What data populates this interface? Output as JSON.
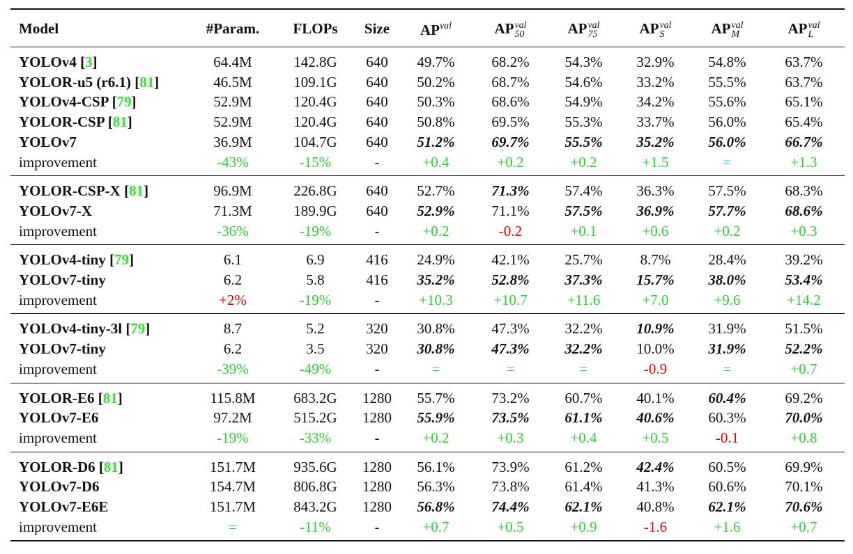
{
  "colors": {
    "improvement_positive": "#29d12e",
    "improvement_negative": "#e00000",
    "improvement_equal": "#1fb2f0",
    "citation": "#2ee52e"
  },
  "headers": {
    "model": "Model",
    "params": "#Param.",
    "flops": "FLOPs",
    "size": "Size",
    "ap": {
      "base": "AP",
      "sup": "val"
    },
    "ap50": {
      "base": "AP",
      "sup": "val",
      "sub": "50"
    },
    "ap75": {
      "base": "AP",
      "sup": "val",
      "sub": "75"
    },
    "aps": {
      "base": "AP",
      "sup": "val",
      "sub": "S"
    },
    "apm": {
      "base": "AP",
      "sup": "val",
      "sub": "M"
    },
    "apl": {
      "base": "AP",
      "sup": "val",
      "sub": "L"
    }
  },
  "groups": [
    {
      "rows": [
        {
          "model": "YOLOv4",
          "cite": "3",
          "params": "64.4M",
          "flops": "142.8G",
          "size": "640",
          "ap": "49.7%",
          "ap50": "68.2%",
          "ap75": "54.3%",
          "aps": "32.9%",
          "apm": "54.8%",
          "apl": "63.7%"
        },
        {
          "model": "YOLOR-u5 (r6.1)",
          "cite": "81",
          "params": "46.5M",
          "flops": "109.1G",
          "size": "640",
          "ap": "50.2%",
          "ap50": "68.7%",
          "ap75": "54.6%",
          "aps": "33.2%",
          "apm": "55.5%",
          "apl": "63.7%"
        },
        {
          "model": "YOLOv4-CSP",
          "cite": "79",
          "params": "52.9M",
          "flops": "120.4G",
          "size": "640",
          "ap": "50.3%",
          "ap50": "68.6%",
          "ap75": "54.9%",
          "aps": "34.2%",
          "apm": "55.6%",
          "apl": "65.1%"
        },
        {
          "model": "YOLOR-CSP",
          "cite": "81",
          "params": "52.9M",
          "flops": "120.4G",
          "size": "640",
          "ap": "50.8%",
          "ap50": "69.5%",
          "ap75": "55.3%",
          "aps": "33.7%",
          "apm": "56.0%",
          "apl": "65.4%"
        },
        {
          "model": "YOLOv7",
          "params": "36.9M",
          "flops": "104.7G",
          "size": "640",
          "ap": "51.2%",
          "ap50": "69.7%",
          "ap75": "55.5%",
          "aps": "35.2%",
          "apm": "56.0%",
          "apl": "66.7%"
        },
        {
          "model": "improvement",
          "params": "-43%",
          "flops": "-15%",
          "size": "-",
          "ap": "+0.4",
          "ap50": "+0.2",
          "ap75": "+0.2",
          "aps": "+1.5",
          "apm": "=",
          "apl": "+1.3"
        }
      ]
    },
    {
      "rows": [
        {
          "model": "YOLOR-CSP-X",
          "cite": "81",
          "params": "96.9M",
          "flops": "226.8G",
          "size": "640",
          "ap": "52.7%",
          "ap50": "71.3%",
          "ap75": "57.4%",
          "aps": "36.3%",
          "apm": "57.5%",
          "apl": "68.3%"
        },
        {
          "model": "YOLOv7-X",
          "params": "71.3M",
          "flops": "189.9G",
          "size": "640",
          "ap": "52.9%",
          "ap50": "71.1%",
          "ap75": "57.5%",
          "aps": "36.9%",
          "apm": "57.7%",
          "apl": "68.6%"
        },
        {
          "model": "improvement",
          "params": "-36%",
          "flops": "-19%",
          "size": "-",
          "ap": "+0.2",
          "ap50": "-0.2",
          "ap75": "+0.1",
          "aps": "+0.6",
          "apm": "+0.2",
          "apl": "+0.3"
        }
      ]
    },
    {
      "rows": [
        {
          "model": "YOLOv4-tiny",
          "cite": "79",
          "params": "6.1",
          "flops": "6.9",
          "size": "416",
          "ap": "24.9%",
          "ap50": "42.1%",
          "ap75": "25.7%",
          "aps": "8.7%",
          "apm": "28.4%",
          "apl": "39.2%"
        },
        {
          "model": "YOLOv7-tiny",
          "params": "6.2",
          "flops": "5.8",
          "size": "416",
          "ap": "35.2%",
          "ap50": "52.8%",
          "ap75": "37.3%",
          "aps": "15.7%",
          "apm": "38.0%",
          "apl": "53.4%"
        },
        {
          "model": "improvement",
          "params": "+2%",
          "flops": "-19%",
          "size": "-",
          "ap": "+10.3",
          "ap50": "+10.7",
          "ap75": "+11.6",
          "aps": "+7.0",
          "apm": "+9.6",
          "apl": "+14.2"
        }
      ]
    },
    {
      "rows": [
        {
          "model": "YOLOv4-tiny-3l",
          "cite": "79",
          "params": "8.7",
          "flops": "5.2",
          "size": "320",
          "ap": "30.8%",
          "ap50": "47.3%",
          "ap75": "32.2%",
          "aps": "10.9%",
          "apm": "31.9%",
          "apl": "51.5%"
        },
        {
          "model": "YOLOv7-tiny",
          "params": "6.2",
          "flops": "3.5",
          "size": "320",
          "ap": "30.8%",
          "ap50": "47.3%",
          "ap75": "32.2%",
          "aps": "10.0%",
          "apm": "31.9%",
          "apl": "52.2%"
        },
        {
          "model": "improvement",
          "params": "-39%",
          "flops": "-49%",
          "size": "-",
          "ap": "=",
          "ap50": "=",
          "ap75": "=",
          "aps": "-0.9",
          "apm": "=",
          "apl": "+0.7"
        }
      ]
    },
    {
      "rows": [
        {
          "model": "YOLOR-E6",
          "cite": "81",
          "params": "115.8M",
          "flops": "683.2G",
          "size": "1280",
          "ap": "55.7%",
          "ap50": "73.2%",
          "ap75": "60.7%",
          "aps": "40.1%",
          "apm": "60.4%",
          "apl": "69.2%"
        },
        {
          "model": "YOLOv7-E6",
          "params": "97.2M",
          "flops": "515.2G",
          "size": "1280",
          "ap": "55.9%",
          "ap50": "73.5%",
          "ap75": "61.1%",
          "aps": "40.6%",
          "apm": "60.3%",
          "apl": "70.0%"
        },
        {
          "model": "improvement",
          "params": "-19%",
          "flops": "-33%",
          "size": "-",
          "ap": "+0.2",
          "ap50": "+0.3",
          "ap75": "+0.4",
          "aps": "+0.5",
          "apm": "-0.1",
          "apl": "+0.8"
        }
      ]
    },
    {
      "rows": [
        {
          "model": "YOLOR-D6",
          "cite": "81",
          "params": "151.7M",
          "flops": "935.6G",
          "size": "1280",
          "ap": "56.1%",
          "ap50": "73.9%",
          "ap75": "61.2%",
          "aps": "42.4%",
          "apm": "60.5%",
          "apl": "69.9%"
        },
        {
          "model": "YOLOv7-D6",
          "params": "154.7M",
          "flops": "806.8G",
          "size": "1280",
          "ap": "56.3%",
          "ap50": "73.8%",
          "ap75": "61.4%",
          "aps": "41.3%",
          "apm": "60.6%",
          "apl": "70.1%"
        },
        {
          "model": "YOLOv7-E6E",
          "params": "151.7M",
          "flops": "843.2G",
          "size": "1280",
          "ap": "56.8%",
          "ap50": "74.4%",
          "ap75": "62.1%",
          "aps": "40.8%",
          "apm": "62.1%",
          "apl": "70.6%"
        },
        {
          "model": "improvement",
          "params": "=",
          "flops": "-11%",
          "size": "-",
          "ap": "+0.7",
          "ap50": "+0.5",
          "ap75": "+0.9",
          "aps": "-1.6",
          "apm": "+1.6",
          "apl": "+0.7"
        }
      ]
    }
  ],
  "bold_cells": [
    [
      "0.4.ap",
      "0.4.ap50",
      "0.4.ap75",
      "0.4.aps",
      "0.4.apm",
      "0.4.apl"
    ],
    [
      "1.0.ap50",
      "1.1.ap",
      "1.1.ap75",
      "1.1.aps",
      "1.1.apm",
      "1.1.apl"
    ],
    [
      "2.1.ap",
      "2.1.ap50",
      "2.1.ap75",
      "2.1.aps",
      "2.1.apm",
      "2.1.apl"
    ],
    [
      "3.0.aps",
      "3.1.ap",
      "3.1.ap50",
      "3.1.ap75",
      "3.1.apm",
      "3.1.apl"
    ],
    [
      "4.0.apm",
      "4.1.ap",
      "4.1.ap50",
      "4.1.ap75",
      "4.1.aps",
      "4.1.apl"
    ],
    [
      "5.0.aps",
      "5.2.ap",
      "5.2.ap50",
      "5.2.ap75",
      "5.2.apm",
      "5.2.apl"
    ]
  ]
}
